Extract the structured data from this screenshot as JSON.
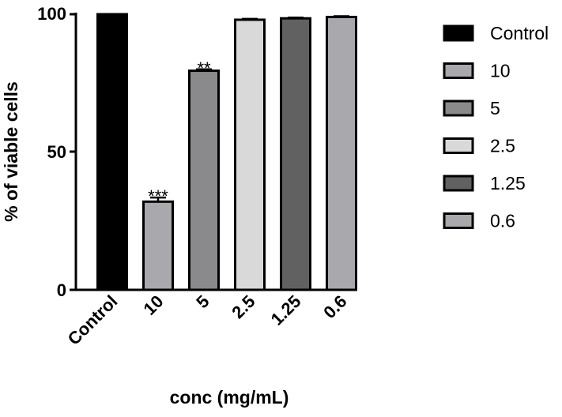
{
  "chart_data": {
    "type": "bar",
    "categories": [
      "Control",
      "10",
      "5",
      "2.5",
      "1.25",
      "0.6"
    ],
    "values": [
      100,
      32,
      79.5,
      98,
      98.5,
      99
    ],
    "errors": [
      0,
      1.5,
      0.5,
      0.3,
      0.3,
      0.3
    ],
    "annotations": [
      "",
      "***",
      "**",
      "",
      "",
      ""
    ],
    "colors": [
      "#000000",
      "#a9a9ad",
      "#8a8a8c",
      "#d9d9d9",
      "#616161",
      "#a9a9ad"
    ],
    "xlabel": "conc (mg/mL)",
    "ylabel": "% of viable cells",
    "ylim": [
      0,
      100
    ],
    "yticks": [
      "0",
      "50",
      "100"
    ],
    "legend": {
      "position": "right",
      "entries": [
        "Control",
        "10",
        "5",
        "2.5",
        "1.25",
        "0.6"
      ]
    }
  }
}
